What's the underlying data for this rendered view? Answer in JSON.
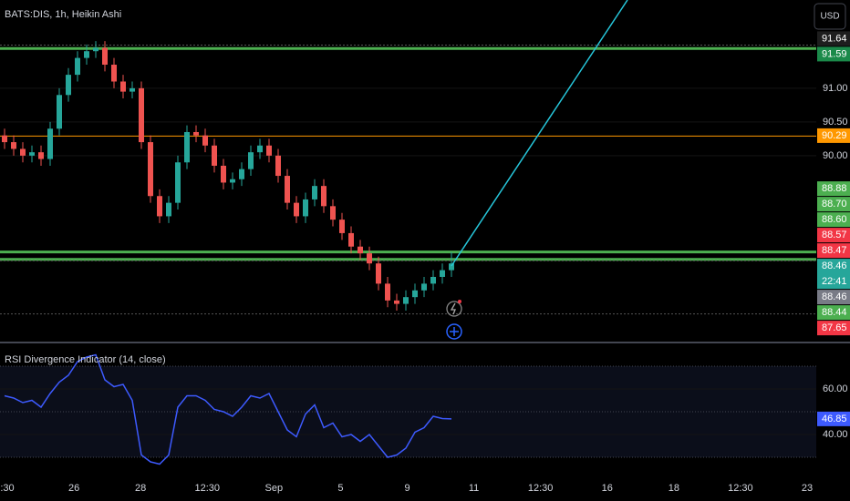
{
  "chart_data": [
    {
      "type": "candlestick",
      "title": "BATS:DIS, 1h, Heikin Ashi",
      "currency": "USD",
      "up_color": "#26a69a",
      "down_color": "#ef5350",
      "ylim": [
        87.24,
        92.31
      ],
      "yticks": [
        {
          "value": 91,
          "label": "91.00"
        },
        {
          "value": 90.5,
          "label": "90.50"
        },
        {
          "value": 90,
          "label": "90.00"
        }
      ],
      "open": [
        90.3,
        90.2,
        90.1,
        90.0,
        90.05,
        89.95,
        90.4,
        90.9,
        91.2,
        91.45,
        91.55,
        91.6,
        91.35,
        91.1,
        90.95,
        91.0,
        90.2,
        89.4,
        89.1,
        89.3,
        89.9,
        90.35,
        90.3,
        90.15,
        89.85,
        89.6,
        89.65,
        89.8,
        90.05,
        90.15,
        90.0,
        89.7,
        89.3,
        89.1,
        89.35,
        89.55,
        89.25,
        89.05,
        88.85,
        88.65,
        88.55,
        88.4,
        88.1,
        87.85,
        87.8,
        87.9,
        88.0,
        88.1,
        88.2,
        88.3
      ],
      "high": [
        90.4,
        90.3,
        90.2,
        90.15,
        90.15,
        90.5,
        91.0,
        91.3,
        91.55,
        91.65,
        91.7,
        91.7,
        91.45,
        91.2,
        91.1,
        91.1,
        90.3,
        89.5,
        89.4,
        90.0,
        90.45,
        90.45,
        90.4,
        90.25,
        89.95,
        89.75,
        89.9,
        90.15,
        90.25,
        90.25,
        90.1,
        89.8,
        89.4,
        89.45,
        89.65,
        89.65,
        89.35,
        89.15,
        88.95,
        88.75,
        88.65,
        88.5,
        88.2,
        87.95,
        88.0,
        88.1,
        88.2,
        88.3,
        88.4,
        88.57
      ],
      "low": [
        90.1,
        90.0,
        89.9,
        89.9,
        89.85,
        89.85,
        90.3,
        90.8,
        91.1,
        91.35,
        91.45,
        91.25,
        91.0,
        90.85,
        90.85,
        90.1,
        89.3,
        89.0,
        89.0,
        89.2,
        89.8,
        90.2,
        90.05,
        89.75,
        89.5,
        89.5,
        89.55,
        89.7,
        89.95,
        89.9,
        89.6,
        89.2,
        89.0,
        89.0,
        89.25,
        89.15,
        88.95,
        88.75,
        88.55,
        88.45,
        88.3,
        88.0,
        87.75,
        87.7,
        87.7,
        87.8,
        87.9,
        88.0,
        88.1,
        88.2
      ],
      "close": [
        90.2,
        90.1,
        90.0,
        90.05,
        89.95,
        90.4,
        90.9,
        91.2,
        91.45,
        91.55,
        91.6,
        91.35,
        91.1,
        90.95,
        91.0,
        90.2,
        89.4,
        89.1,
        89.3,
        89.9,
        90.35,
        90.3,
        90.15,
        89.85,
        89.6,
        89.65,
        89.8,
        90.05,
        90.15,
        90.0,
        89.7,
        89.3,
        89.1,
        89.35,
        89.55,
        89.25,
        89.05,
        88.85,
        88.65,
        88.55,
        88.4,
        88.1,
        87.85,
        87.8,
        87.9,
        88.0,
        88.1,
        88.2,
        88.3,
        88.4
      ],
      "levels": [
        {
          "value": 91.64,
          "color": "#555555",
          "width": 1,
          "dashed": true
        },
        {
          "value": 91.59,
          "color": "#4caf50",
          "width": 3
        },
        {
          "value": 90.29,
          "color": "#ff9800",
          "width": 1
        },
        {
          "value": 88.57,
          "color": "#4caf50",
          "width": 3
        },
        {
          "value": 88.47,
          "color": "#777777",
          "width": 1
        },
        {
          "value": 88.46,
          "color": "#4caf50",
          "width": 3
        },
        {
          "value": 88.44,
          "color": "#555555",
          "width": 1,
          "dashed": true
        },
        {
          "value": 87.65,
          "color": "#555555",
          "width": 1,
          "dashed": true
        }
      ],
      "price_labels": [
        {
          "value": 91.64,
          "color": "#1e1e1e"
        },
        {
          "value": 91.59,
          "color": "#1b8a4a"
        },
        {
          "value": 90.29,
          "color": "#ff9800"
        },
        {
          "value": 88.88,
          "color": "#4caf50"
        },
        {
          "value": 88.7,
          "label": "88.70",
          "color": "#4caf50"
        },
        {
          "value": 88.6,
          "label": "88.60",
          "color": "#4caf50"
        },
        {
          "value": 88.57,
          "color": "#f23645"
        },
        {
          "value": 88.47,
          "color": "#f23645"
        },
        {
          "value": 88.46,
          "color": "#26a69a",
          "countdown": "22:41"
        },
        {
          "value": 88.46,
          "color": "#787b86"
        },
        {
          "value": 88.44,
          "color": "#4caf50"
        },
        {
          "value": 87.65,
          "color": "#f23645"
        }
      ],
      "x_labels": [
        ":30",
        "26",
        "28",
        "12:30",
        "Sep",
        "5",
        "9",
        "11",
        "12:30",
        "16",
        "18",
        "12:30",
        "23"
      ]
    },
    {
      "type": "line",
      "title": "RSI Divergence Indicator (14, close)",
      "color": "#3d5afe",
      "ylim": [
        22.8,
        76.8
      ],
      "yticks": [
        {
          "value": 60,
          "label": "60.00"
        },
        {
          "value": 40,
          "label": "40.00"
        }
      ],
      "levels": [
        70,
        50,
        30
      ],
      "values": [
        57,
        56,
        54,
        55,
        52,
        58,
        63,
        66,
        72,
        74,
        75,
        64,
        61,
        62,
        55,
        31,
        28,
        27,
        31,
        52,
        57,
        57,
        55,
        51,
        50,
        48,
        52,
        57,
        56,
        58,
        50,
        42,
        39,
        49,
        53,
        43,
        45,
        39,
        40,
        37,
        40,
        35,
        30,
        31,
        34,
        41,
        43,
        48,
        47,
        46.85
      ]
    }
  ]
}
